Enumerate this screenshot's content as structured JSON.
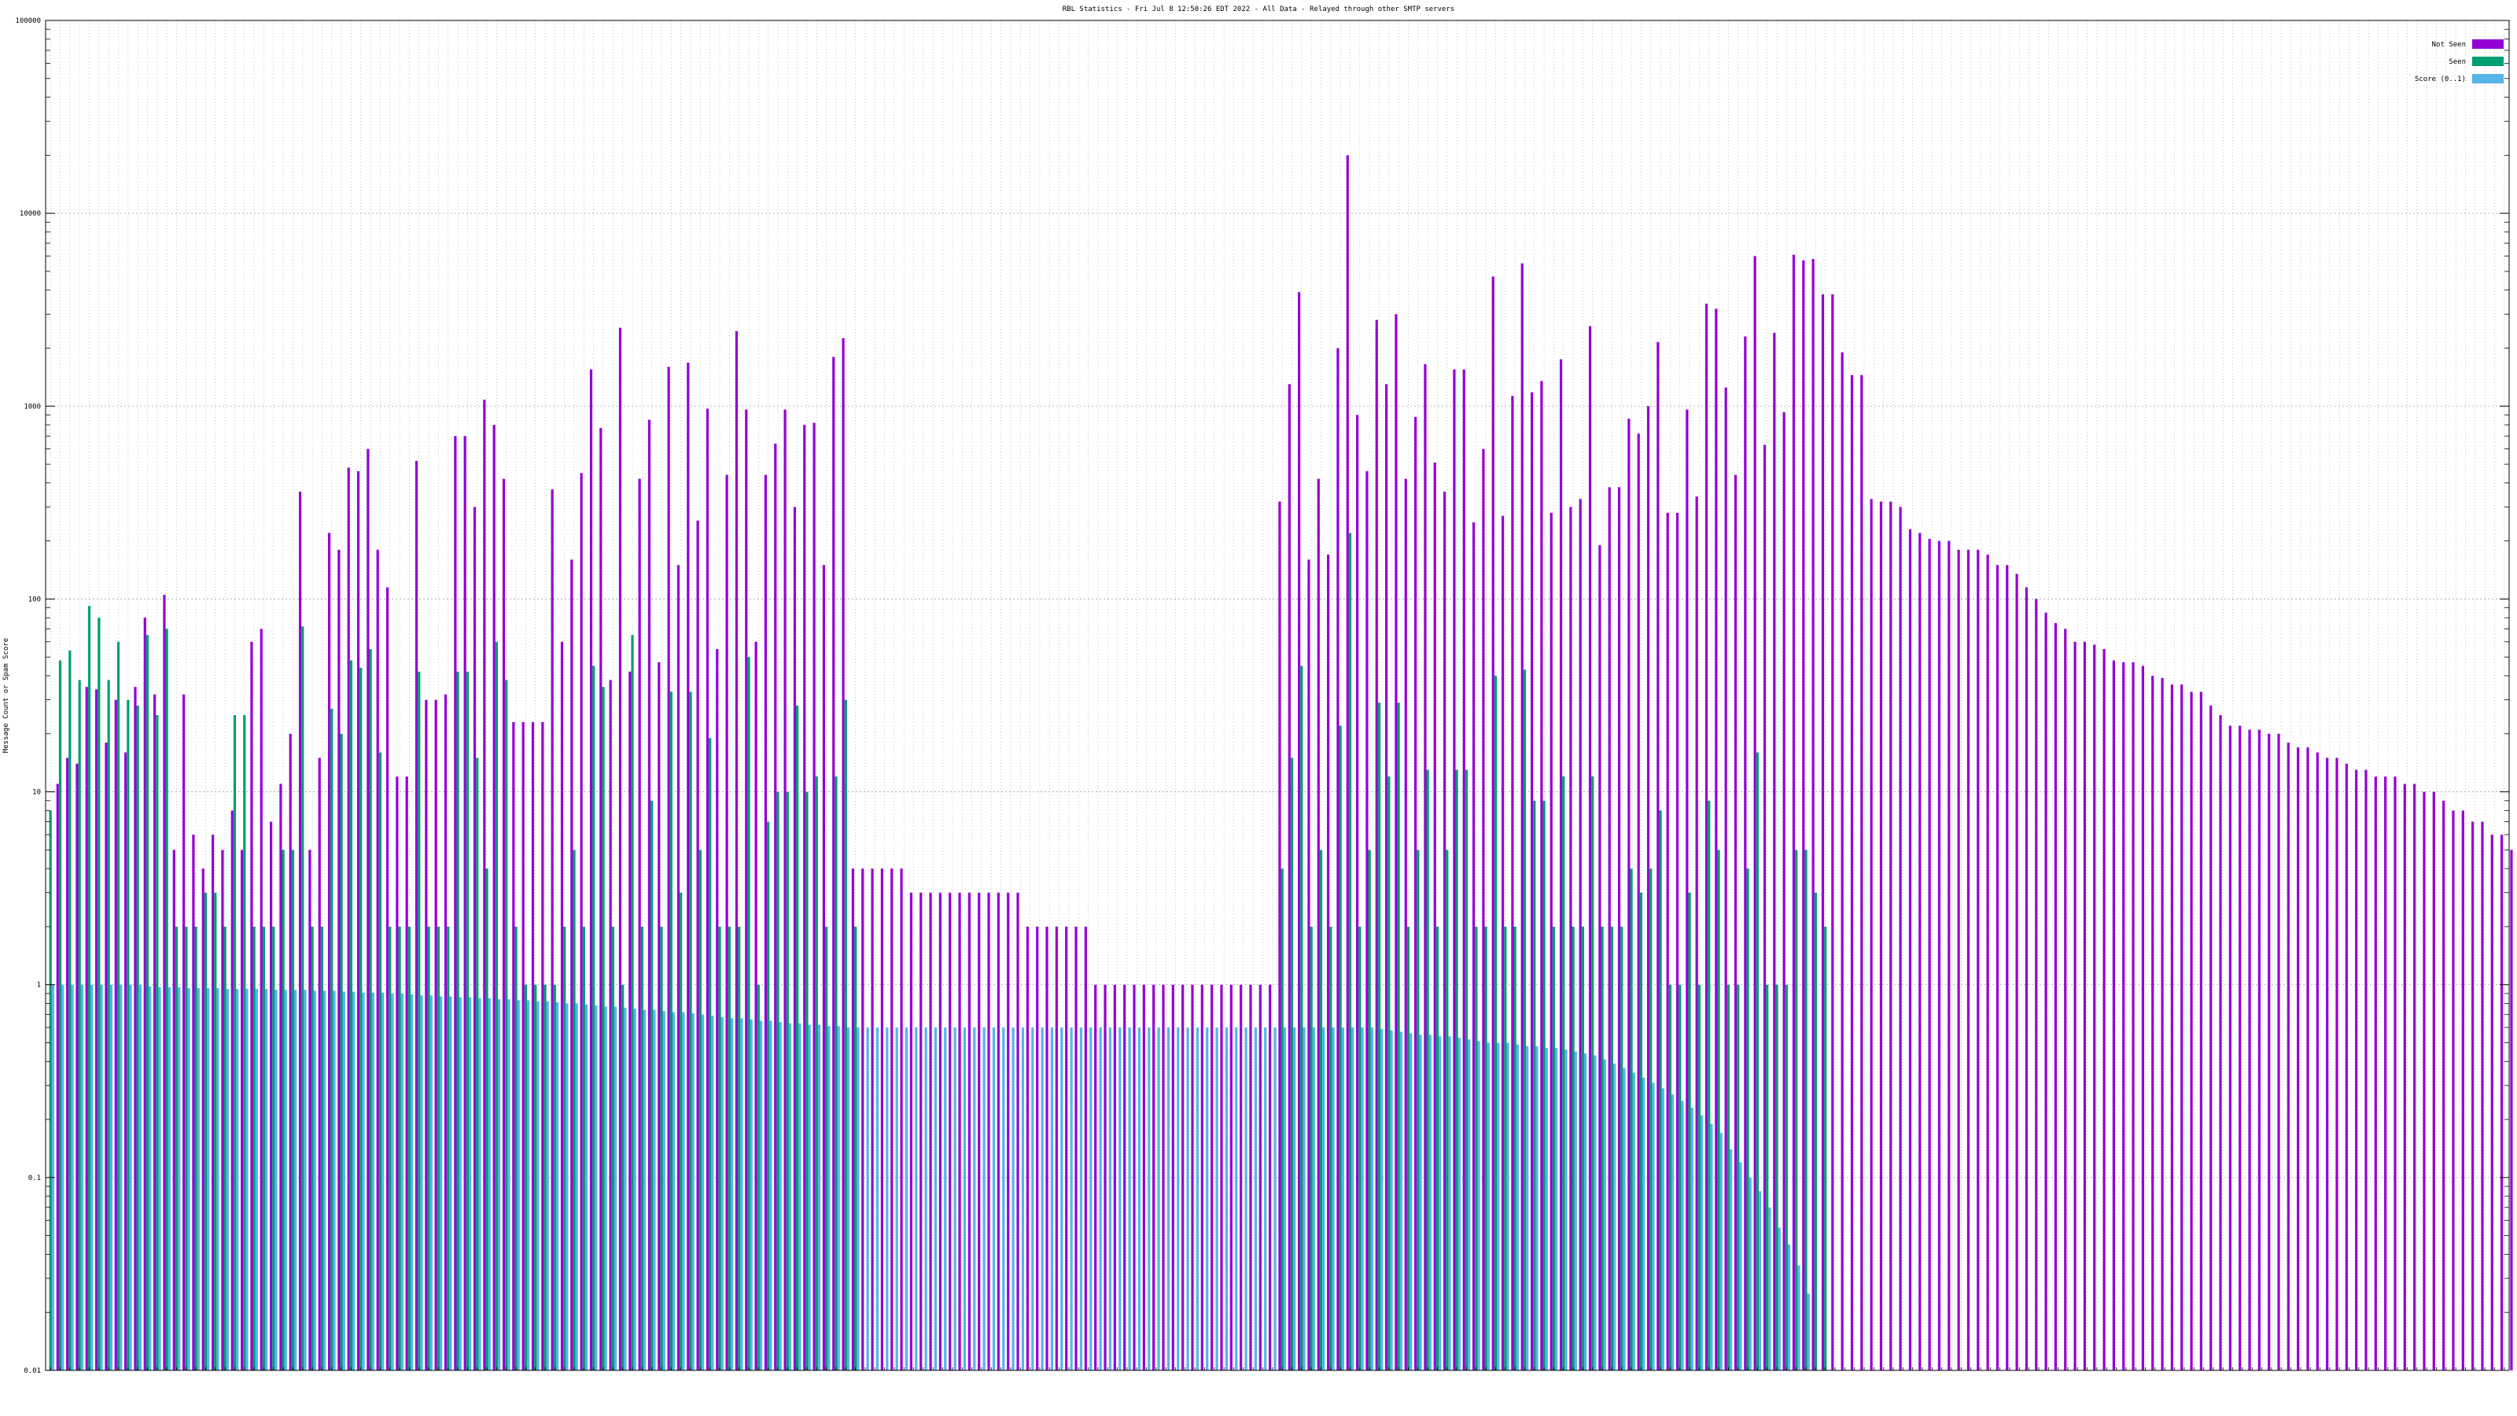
{
  "colors": {
    "not_seen": "#9400d3",
    "seen": "#009e73",
    "score": "#56b4e9",
    "grid": "#a0a0a0",
    "axis": "#000000"
  },
  "chart_data": {
    "type": "bar",
    "title": "RBL Statistics - Fri Jul  8 12:50:26 EDT 2022 - All Data - Relayed through other SMTP servers",
    "ylabel": "Message Count or Spam Score",
    "xlabel": "",
    "y_scale": "log",
    "ylim": [
      0.01,
      100000
    ],
    "y_ticks": [
      "0.01",
      "0.1",
      "1",
      "10",
      "100",
      "1000",
      "10000",
      "100000"
    ],
    "grid": true,
    "legend_position": "top-right",
    "category_count": 254,
    "category_labels_legible": false,
    "series": [
      {
        "name": "Not Seen",
        "color": "#9400d3",
        "values": [
          0.01,
          11,
          15,
          14,
          35,
          34,
          18,
          30,
          16,
          35,
          80,
          32,
          105,
          5,
          32,
          6,
          4,
          6,
          5,
          8,
          5,
          60,
          70,
          7,
          11,
          20,
          360,
          5,
          15,
          220,
          180,
          480,
          460,
          600,
          180,
          115,
          12,
          12,
          520,
          30,
          30,
          32,
          700,
          700,
          300,
          1080,
          800,
          420,
          23,
          23,
          23,
          23,
          370,
          60,
          160,
          450,
          1550,
          770,
          38,
          2550,
          42,
          420,
          850,
          47,
          1600,
          150,
          1680,
          255,
          970,
          55,
          440,
          2450,
          960,
          60,
          440,
          640,
          960,
          300,
          800,
          820,
          150,
          1800,
          2250,
          4,
          4,
          4,
          4,
          4,
          4,
          3,
          3,
          3,
          3,
          3,
          3,
          3,
          3,
          3,
          3,
          3,
          3,
          2,
          2,
          2,
          2,
          2,
          2,
          2,
          1,
          1,
          1,
          1,
          1,
          1,
          1,
          1,
          1,
          1,
          1,
          1,
          1,
          1,
          1,
          1,
          1,
          1,
          1,
          320,
          1300,
          3900,
          160,
          420,
          170,
          2000,
          20000,
          900,
          460,
          2800,
          1300,
          3000,
          420,
          880,
          1650,
          510,
          360,
          1550,
          1550,
          250,
          600,
          4700,
          270,
          1130,
          5500,
          1180,
          1350,
          280,
          1750,
          300,
          330,
          2600,
          190,
          380,
          380,
          860,
          720,
          1000,
          2150,
          280,
          280,
          960,
          340,
          3400,
          3200,
          1250,
          440,
          2300,
          6000,
          630,
          2400,
          930,
          6100,
          5700,
          5800,
          3800,
          3800,
          1900,
          1450,
          1450,
          330,
          320,
          320,
          300,
          230,
          220,
          205,
          200,
          200,
          180,
          180,
          180,
          170,
          150,
          150,
          135,
          115,
          100,
          85,
          75,
          70,
          60,
          60,
          58,
          55,
          48,
          47,
          47,
          45,
          40,
          39,
          36,
          36,
          33,
          33,
          28,
          25,
          22,
          22,
          21,
          21,
          20,
          20,
          18,
          17,
          17,
          16,
          15,
          15,
          14,
          13,
          13,
          12,
          12,
          12,
          11,
          11,
          10,
          10,
          9,
          8,
          8,
          7,
          7,
          6,
          6,
          5,
          5,
          5
        ]
      },
      {
        "name": "Seen",
        "color": "#009e73",
        "values": [
          8,
          48,
          54,
          38,
          92,
          80,
          38,
          60,
          30,
          28,
          65,
          25,
          70,
          2,
          2,
          2,
          3,
          3,
          2,
          25,
          25,
          2,
          2,
          2,
          5,
          5,
          72,
          2,
          2,
          27,
          20,
          48,
          44,
          55,
          16,
          2,
          2,
          2,
          42,
          2,
          2,
          2,
          42,
          42,
          15,
          4,
          60,
          38,
          2,
          1,
          1,
          1,
          1,
          2,
          5,
          2,
          45,
          35,
          2,
          1,
          65,
          2,
          9,
          2,
          33,
          3,
          33,
          5,
          19,
          2,
          2,
          2,
          50,
          1,
          7,
          10,
          10,
          28,
          10,
          12,
          2,
          12,
          30,
          2,
          0,
          0,
          0,
          0,
          0,
          0,
          0,
          0,
          0,
          0,
          0,
          0,
          0,
          0,
          0,
          0,
          0,
          0,
          0,
          0,
          0,
          0,
          0,
          0,
          0,
          0,
          0,
          0,
          0,
          0,
          0,
          0,
          0,
          0,
          0,
          0,
          0,
          0,
          0,
          0,
          0,
          0,
          0,
          4,
          15,
          45,
          2,
          5,
          2,
          22,
          220,
          2,
          5,
          29,
          12,
          29,
          2,
          5,
          13,
          2,
          5,
          13,
          13,
          2,
          2,
          40,
          2,
          2,
          43,
          9,
          9,
          2,
          12,
          2,
          2,
          12,
          2,
          2,
          2,
          4,
          3,
          4,
          8,
          1,
          1,
          3,
          1,
          9,
          5,
          1,
          1,
          4,
          16,
          1,
          1,
          1,
          5,
          5,
          3,
          2,
          0,
          0,
          0,
          0,
          0,
          0,
          0,
          0,
          0,
          0,
          0,
          0,
          0,
          0,
          0,
          0,
          0,
          0,
          0,
          0,
          0,
          0,
          0,
          0,
          0,
          0,
          0,
          0,
          0,
          0,
          0,
          0,
          0,
          0,
          0,
          0,
          0,
          0,
          0,
          0,
          0,
          0,
          0,
          0,
          0,
          0,
          0,
          0,
          0,
          0,
          0,
          0,
          0,
          0,
          0,
          0,
          0,
          0,
          0,
          0,
          0,
          0,
          0,
          0,
          0,
          0,
          0,
          0,
          0,
          0
        ]
      },
      {
        "name": "Score (0..1)",
        "color": "#56b4e9",
        "values": [
          1,
          1,
          1,
          1,
          1,
          1,
          1,
          1,
          1,
          1,
          0.98,
          0.97,
          0.97,
          0.97,
          0.96,
          0.96,
          0.96,
          0.96,
          0.95,
          0.95,
          0.95,
          0.95,
          0.95,
          0.94,
          0.94,
          0.94,
          0.94,
          0.93,
          0.93,
          0.93,
          0.92,
          0.92,
          0.91,
          0.91,
          0.91,
          0.9,
          0.9,
          0.89,
          0.88,
          0.88,
          0.87,
          0.87,
          0.86,
          0.86,
          0.85,
          0.85,
          0.84,
          0.84,
          0.83,
          0.83,
          0.82,
          0.82,
          0.81,
          0.8,
          0.8,
          0.79,
          0.78,
          0.77,
          0.77,
          0.76,
          0.75,
          0.74,
          0.74,
          0.73,
          0.72,
          0.72,
          0.71,
          0.7,
          0.69,
          0.68,
          0.67,
          0.67,
          0.66,
          0.65,
          0.65,
          0.64,
          0.63,
          0.63,
          0.62,
          0.62,
          0.61,
          0.61,
          0.6,
          0.6,
          0.6,
          0.6,
          0.6,
          0.6,
          0.6,
          0.6,
          0.6,
          0.6,
          0.6,
          0.6,
          0.6,
          0.6,
          0.6,
          0.6,
          0.6,
          0.6,
          0.6,
          0.6,
          0.6,
          0.6,
          0.6,
          0.6,
          0.6,
          0.6,
          0.6,
          0.6,
          0.6,
          0.6,
          0.6,
          0.6,
          0.6,
          0.6,
          0.6,
          0.6,
          0.6,
          0.6,
          0.6,
          0.6,
          0.6,
          0.6,
          0.6,
          0.6,
          0.6,
          0.6,
          0.6,
          0.6,
          0.6,
          0.6,
          0.6,
          0.6,
          0.6,
          0.6,
          0.6,
          0.59,
          0.58,
          0.57,
          0.56,
          0.55,
          0.55,
          0.54,
          0.54,
          0.53,
          0.52,
          0.51,
          0.5,
          0.5,
          0.5,
          0.49,
          0.48,
          0.48,
          0.47,
          0.47,
          0.46,
          0.45,
          0.44,
          0.43,
          0.41,
          0.39,
          0.37,
          0.35,
          0.33,
          0.31,
          0.29,
          0.27,
          0.25,
          0.23,
          0.21,
          0.19,
          0.17,
          0.14,
          0.12,
          0.1,
          0.085,
          0.07,
          0.055,
          0.045,
          0.035,
          0.025,
          0.01,
          0,
          0,
          0,
          0,
          0,
          0,
          0,
          0,
          0,
          0,
          0,
          0,
          0,
          0,
          0,
          0,
          0,
          0,
          0,
          0,
          0,
          0,
          0,
          0,
          0,
          0,
          0,
          0,
          0,
          0,
          0,
          0,
          0,
          0,
          0,
          0,
          0,
          0,
          0,
          0,
          0,
          0,
          0,
          0,
          0,
          0,
          0,
          0,
          0,
          0,
          0,
          0,
          0,
          0,
          0,
          0,
          0,
          0,
          0,
          0,
          0,
          0,
          0,
          0,
          0,
          0,
          0,
          0,
          0,
          0,
          0,
          0,
          0,
          0,
          0,
          0,
          0,
          0,
          0,
          0
        ]
      }
    ]
  }
}
